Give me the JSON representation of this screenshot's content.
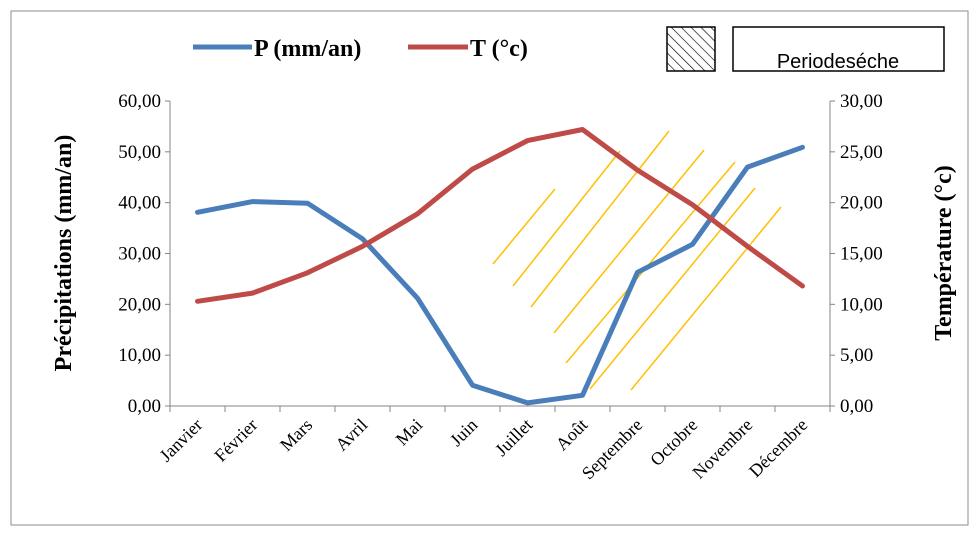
{
  "chart_data": {
    "type": "line",
    "categories": [
      "Janvier",
      "Février",
      "Mars",
      "Avril",
      "Mai",
      "Juin",
      "Juillet",
      "Août",
      "Septembre",
      "Octobre",
      "Novembre",
      "Décembre"
    ],
    "series": [
      {
        "name": "P (mm/an)",
        "axis": "left",
        "color": "#4a7ebb",
        "values": [
          38.1,
          40.2,
          39.9,
          32.9,
          21.2,
          4.1,
          0.6,
          2.1,
          26.3,
          31.8,
          47.0,
          50.9
        ]
      },
      {
        "name": "T (°c)",
        "axis": "right",
        "color": "#be4b48",
        "values": [
          10.3,
          11.1,
          13.1,
          15.7,
          18.9,
          23.3,
          26.1,
          27.2,
          23.2,
          19.8,
          15.7,
          11.8
        ]
      }
    ],
    "ylabel": "Précipitations (mm/an)",
    "y2label": "Température (°c)",
    "ylim": [
      0,
      60
    ],
    "y2lim": [
      0,
      30
    ],
    "yticks": [
      "0,00",
      "10,00",
      "20,00",
      "30,00",
      "40,00",
      "50,00",
      "60,00"
    ],
    "y2ticks": [
      "0,00",
      "5,00",
      "10,00",
      "15,00",
      "20,00",
      "25,00",
      "30,00"
    ],
    "grid": false,
    "legend_position": "top",
    "dry_period": {
      "label": "Periodeséche",
      "hatch_color": "#ffc000",
      "from_month": "Juillet",
      "to_month": "Novembre"
    }
  }
}
